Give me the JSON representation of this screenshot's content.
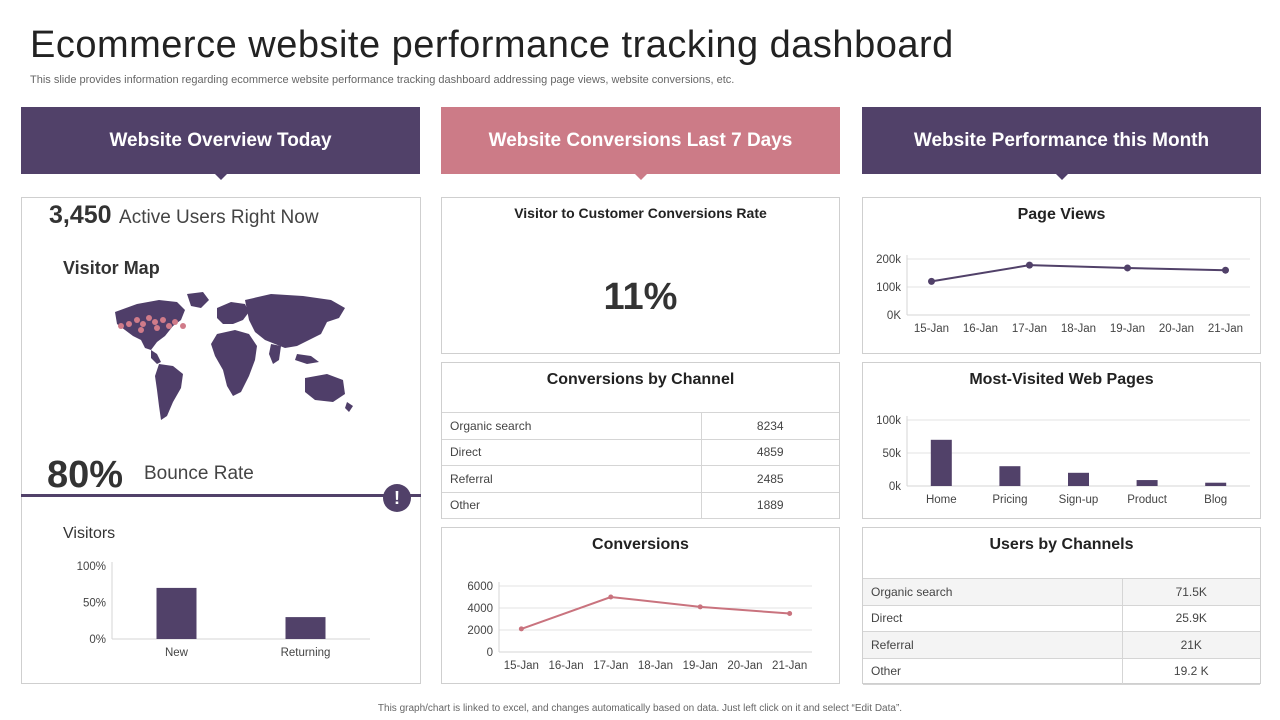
{
  "header": {
    "title": "Ecommerce website performance tracking dashboard",
    "subtitle": "This slide provides information regarding ecommerce website performance tracking dashboard addressing page views, website conversions, etc.",
    "footnote": "This graph/chart is linked to excel, and changes automatically based on data. Just left click on it and select “Edit Data”."
  },
  "colors": {
    "purple": "#514169",
    "pink": "#cc7b87",
    "map": "#4f3e69",
    "line_pink": "#c9737e"
  },
  "sections": {
    "overview": "Website Overview Today",
    "conversions": "Website Conversions Last 7 Days",
    "performance": "Website Performance this Month"
  },
  "overview": {
    "active_users_value": "3,450",
    "active_users_label": "Active Users Right Now",
    "visitor_map_title": "Visitor Map",
    "bounce_rate_value": "80%",
    "bounce_rate_label": "Bounce Rate",
    "alert_icon": "exclamation-icon",
    "alert_glyph": "!"
  },
  "conversion_rate": {
    "title": "Visitor to Customer Conversions Rate",
    "value": "11%"
  },
  "conversions_by_channel": {
    "title": "Conversions  by Channel",
    "rows": [
      {
        "channel": "Organic search",
        "value": "8234"
      },
      {
        "channel": "Direct",
        "value": "4859"
      },
      {
        "channel": "Referral",
        "value": "2485"
      },
      {
        "channel": "Other",
        "value": "1889"
      }
    ]
  },
  "users_by_channels": {
    "title": "Users by Channels",
    "rows": [
      {
        "channel": "Organic search",
        "value": "71.5K"
      },
      {
        "channel": "Direct",
        "value": "25.9K"
      },
      {
        "channel": "Referral",
        "value": "21K"
      },
      {
        "channel": "Other",
        "value": "19.2 K"
      }
    ]
  },
  "chart_data": [
    {
      "id": "visitors",
      "type": "bar",
      "title": "Visitors",
      "categories": [
        "New",
        "Returning"
      ],
      "values": [
        70,
        30
      ],
      "ylim": [
        0,
        100
      ],
      "yticks": [
        "0%",
        "50%",
        "100%"
      ],
      "ytick_values": [
        0,
        50,
        100
      ],
      "grid": false
    },
    {
      "id": "page_views",
      "type": "line",
      "title": "Page Views",
      "categories": [
        "15-Jan",
        "16-Jan",
        "17-Jan",
        "18-Jan",
        "19-Jan",
        "20-Jan",
        "21-Jan"
      ],
      "points": [
        {
          "x": "15-Jan",
          "y": 120
        },
        {
          "x": "17-Jan",
          "y": 178
        },
        {
          "x": "19-Jan",
          "y": 168
        },
        {
          "x": "21-Jan",
          "y": 160
        }
      ],
      "ylim": [
        0,
        200
      ],
      "yticks": [
        "0K",
        "100k",
        "200k"
      ],
      "ytick_values": [
        0,
        100,
        200
      ],
      "grid": true
    },
    {
      "id": "most_visited",
      "type": "bar",
      "title": "Most-Visited  Web Pages",
      "categories": [
        "Home",
        "Pricing",
        "Sign-up",
        "Product",
        "Blog"
      ],
      "values": [
        70,
        30,
        20,
        9,
        5
      ],
      "ylim": [
        0,
        100
      ],
      "yticks": [
        "0k",
        "50k",
        "100k"
      ],
      "ytick_values": [
        0,
        50,
        100
      ],
      "grid": true
    },
    {
      "id": "conversions",
      "type": "line",
      "title": "Conversions",
      "categories": [
        "15-Jan",
        "16-Jan",
        "17-Jan",
        "18-Jan",
        "19-Jan",
        "20-Jan",
        "21-Jan"
      ],
      "points": [
        {
          "x": "15-Jan",
          "y": 2100
        },
        {
          "x": "17-Jan",
          "y": 5000
        },
        {
          "x": "19-Jan",
          "y": 4100
        },
        {
          "x": "21-Jan",
          "y": 3500
        }
      ],
      "ylim": [
        0,
        6000
      ],
      "yticks": [
        "0",
        "2000",
        "4000",
        "6000"
      ],
      "ytick_values": [
        0,
        2000,
        4000,
        6000
      ],
      "grid": true
    }
  ]
}
